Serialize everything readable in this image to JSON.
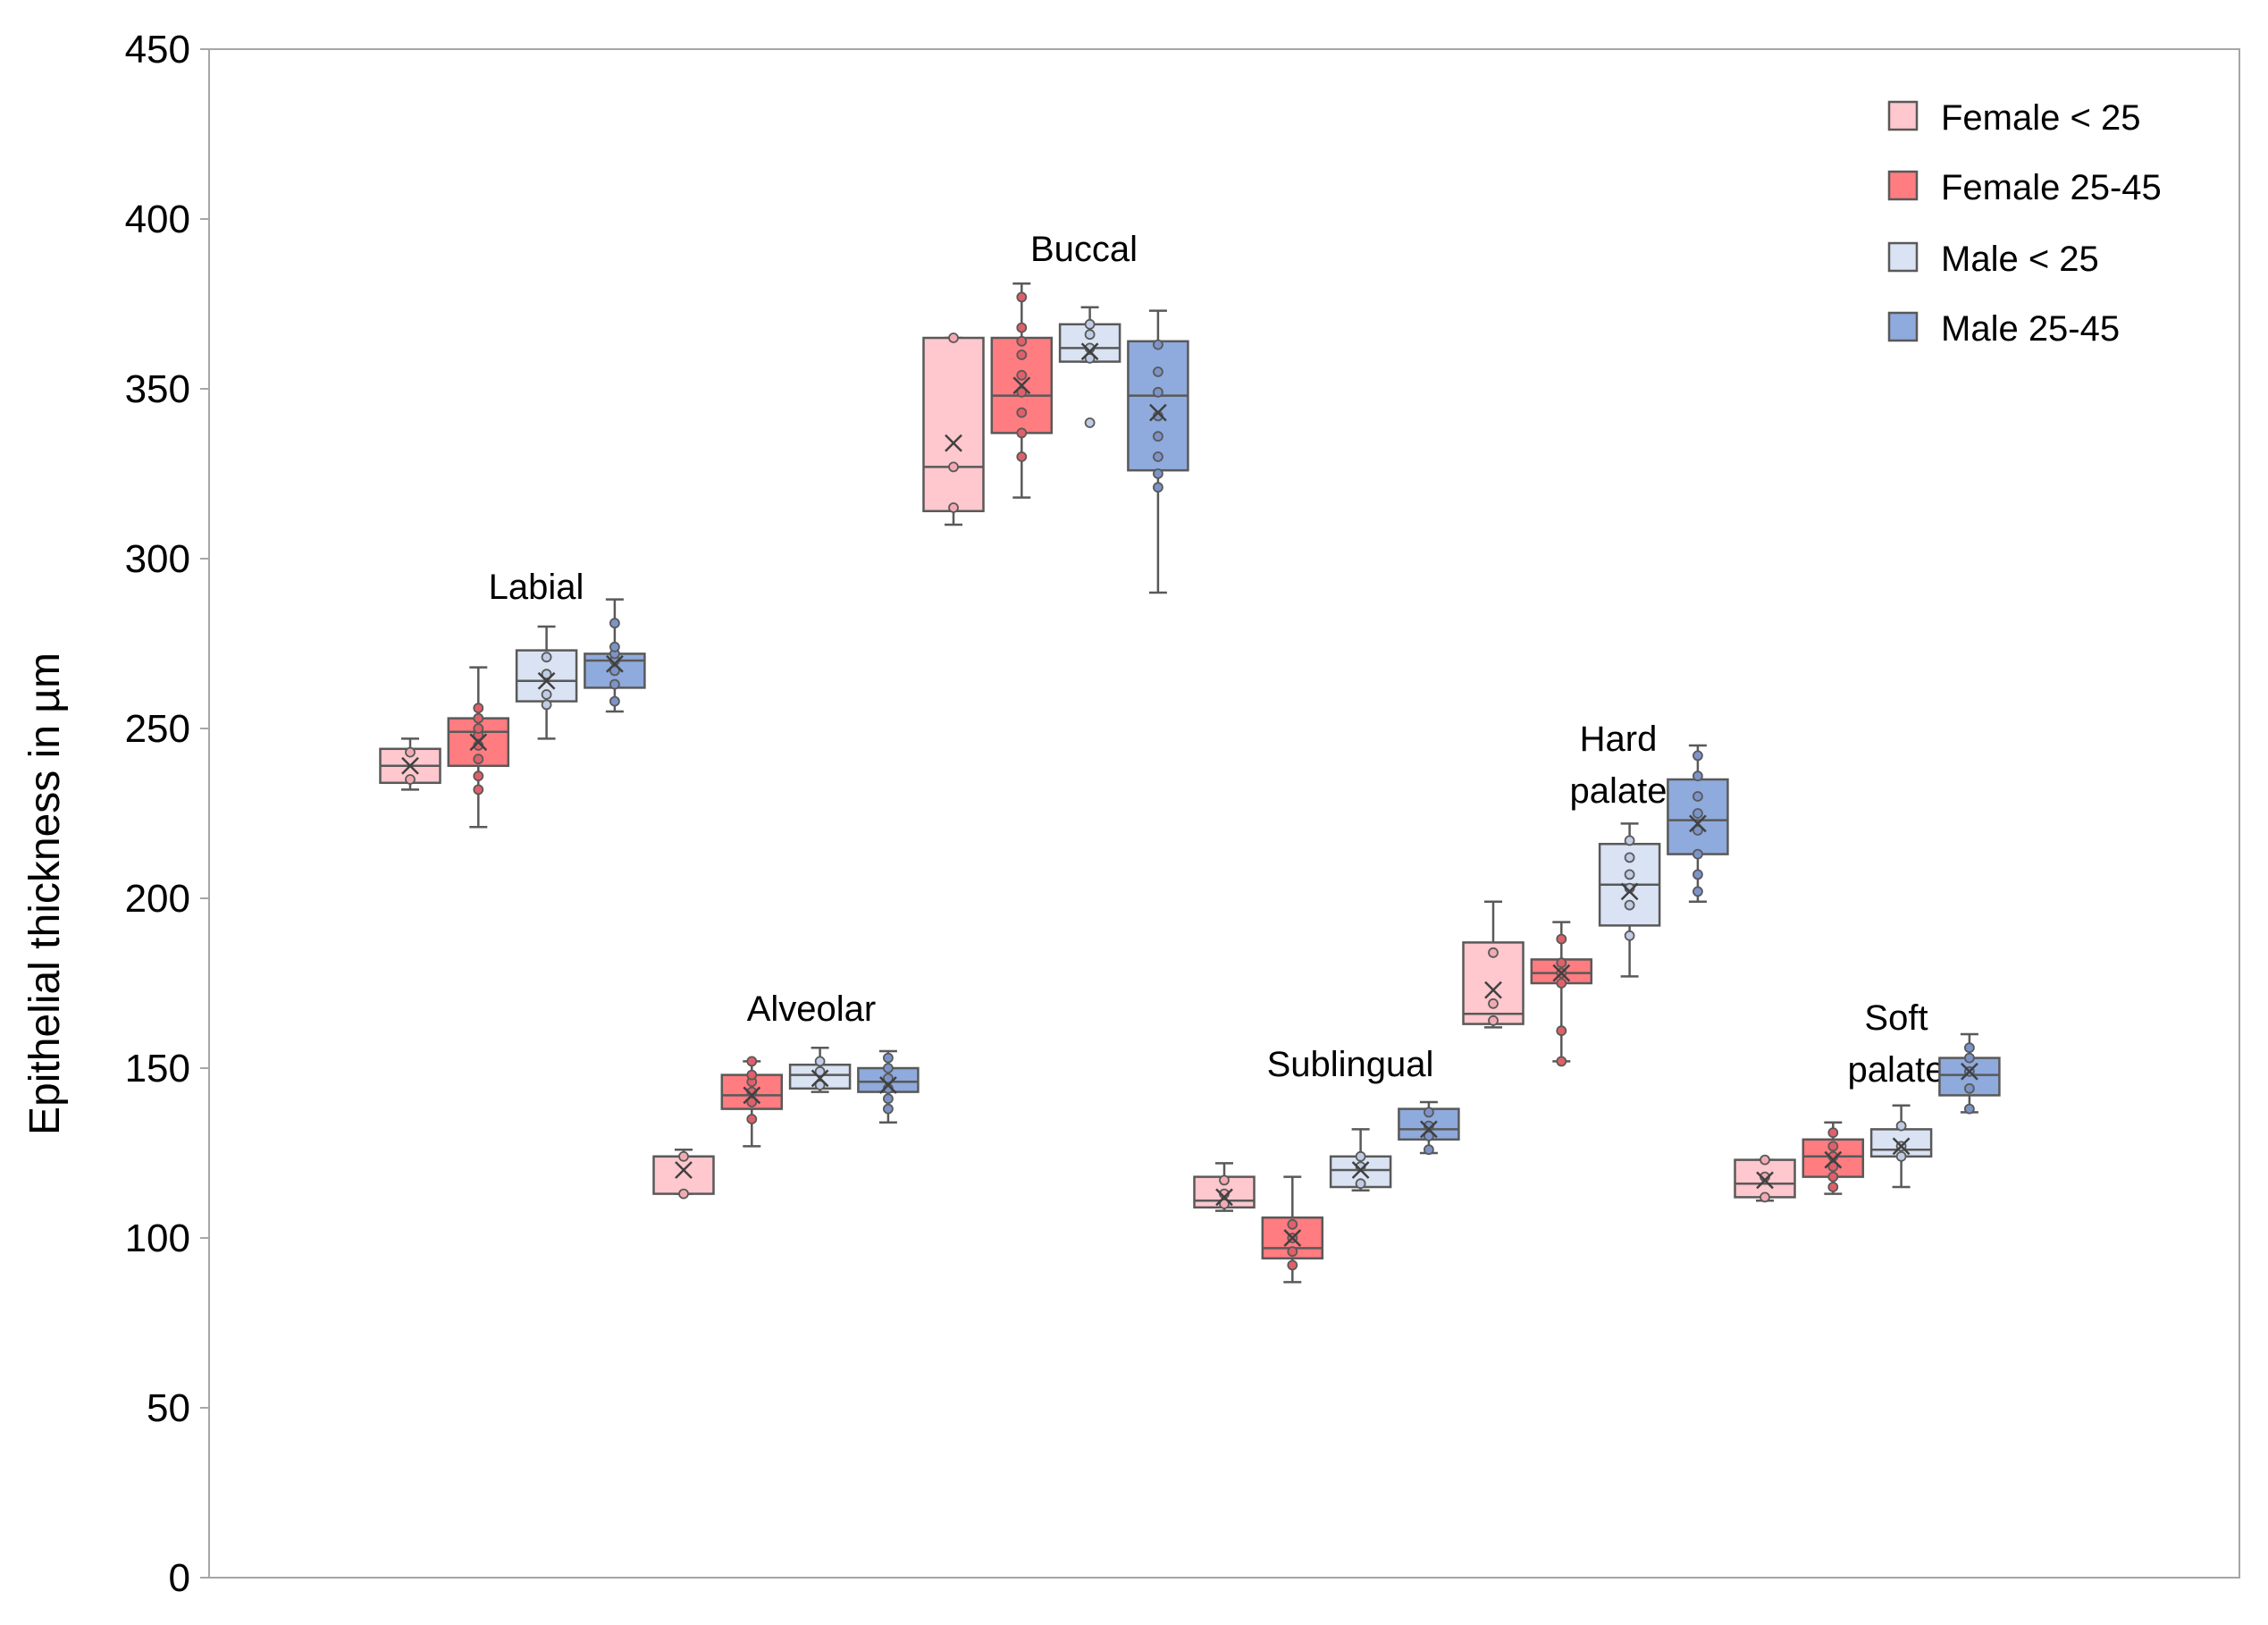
{
  "chart_data": {
    "type": "box",
    "title": "",
    "xlabel": "",
    "ylabel": "Epithelial thickness in µm",
    "ylim": [
      0,
      450
    ],
    "yticks": [
      0,
      50,
      100,
      150,
      200,
      250,
      300,
      350,
      400,
      450
    ],
    "grid": false,
    "legend_position": "top-right",
    "series": [
      {
        "name": "Female < 25",
        "fill": "#FFC7CE",
        "stroke": "#E07882",
        "point": "#F2AAB2"
      },
      {
        "name": "Female 25-45",
        "fill": "#FF7C80",
        "stroke": "#C8505A",
        "point": "#E0606A"
      },
      {
        "name": "Male < 25",
        "fill": "#DAE3F3",
        "stroke": "#7F8BA0",
        "point": "#C0CCE4"
      },
      {
        "name": "Male 25-45",
        "fill": "#8FAADC",
        "stroke": "#5A6E96",
        "point": "#7C94C8"
      }
    ],
    "groups": [
      {
        "label": [
          "Labial"
        ],
        "boxes": [
          {
            "min": 232,
            "q1": 234,
            "median": 239,
            "q3": 244,
            "max": 247,
            "mean": 239,
            "points": [
              235,
              243
            ]
          },
          {
            "min": 221,
            "q1": 239,
            "median": 249,
            "q3": 253,
            "max": 268,
            "mean": 246,
            "points": [
              232,
              236,
              241,
              245,
              248,
              250,
              253,
              256
            ]
          },
          {
            "min": 247,
            "q1": 258,
            "median": 264,
            "q3": 273,
            "max": 280,
            "mean": 264,
            "points": [
              257,
              260,
              266,
              271
            ]
          },
          {
            "min": 255,
            "q1": 262,
            "median": 270,
            "q3": 272,
            "max": 288,
            "mean": 269,
            "points": [
              258,
              263,
              267,
              270,
              272,
              274,
              281
            ]
          }
        ]
      },
      {
        "label": [
          "Alveolar"
        ],
        "boxes": [
          {
            "min": 113,
            "q1": 113,
            "median": 124,
            "q3": 124,
            "max": 126,
            "mean": 120,
            "points": [
              113,
              124
            ]
          },
          {
            "min": 127,
            "q1": 138,
            "median": 142,
            "q3": 148,
            "max": 152,
            "mean": 142,
            "points": [
              135,
              140,
              143,
              146,
              148,
              152
            ]
          },
          {
            "min": 143,
            "q1": 144,
            "median": 148,
            "q3": 151,
            "max": 156,
            "mean": 147,
            "points": [
              145,
              149,
              152
            ]
          },
          {
            "min": 134,
            "q1": 143,
            "median": 146,
            "q3": 150,
            "max": 155,
            "mean": 145,
            "points": [
              138,
              141,
              144,
              147,
              150,
              153
            ]
          }
        ]
      },
      {
        "label": [
          "Buccal"
        ],
        "boxes": [
          {
            "min": 310,
            "q1": 314,
            "median": 327,
            "q3": 365,
            "max": 365,
            "mean": 334,
            "points": [
              315,
              327,
              365
            ]
          },
          {
            "min": 318,
            "q1": 337,
            "median": 348,
            "q3": 365,
            "max": 381,
            "mean": 351,
            "points": [
              330,
              337,
              343,
              349,
              354,
              360,
              364,
              368,
              377
            ]
          },
          {
            "min": 358,
            "q1": 358,
            "median": 362,
            "q3": 369,
            "max": 374,
            "mean": 361,
            "points": [
              340,
              359,
              362,
              366,
              369
            ]
          },
          {
            "min": 290,
            "q1": 326,
            "median": 348,
            "q3": 364,
            "max": 373,
            "mean": 343,
            "points": [
              321,
              325,
              330,
              336,
              342,
              349,
              355,
              363
            ]
          }
        ]
      },
      {
        "label": [
          "Sublingual"
        ],
        "boxes": [
          {
            "min": 108,
            "q1": 109,
            "median": 111,
            "q3": 118,
            "max": 122,
            "mean": 112,
            "points": [
              110,
              113,
              117
            ]
          },
          {
            "min": 87,
            "q1": 94,
            "median": 97,
            "q3": 106,
            "max": 118,
            "mean": 100,
            "points": [
              92,
              96,
              100,
              104
            ]
          },
          {
            "min": 114,
            "q1": 115,
            "median": 120,
            "q3": 124,
            "max": 132,
            "mean": 120,
            "points": [
              116,
              121,
              124
            ]
          },
          {
            "min": 125,
            "q1": 129,
            "median": 132,
            "q3": 138,
            "max": 140,
            "mean": 132,
            "points": [
              126,
              130,
              133,
              137
            ]
          }
        ]
      },
      {
        "label": [
          "Hard",
          "palate"
        ],
        "boxes": [
          {
            "min": 162,
            "q1": 163,
            "median": 166,
            "q3": 187,
            "max": 199,
            "mean": 173,
            "points": [
              164,
              169,
              184
            ]
          },
          {
            "min": 152,
            "q1": 175,
            "median": 178,
            "q3": 182,
            "max": 193,
            "mean": 178,
            "points": [
              152,
              161,
              175,
              178,
              181,
              188
            ]
          },
          {
            "min": 177,
            "q1": 192,
            "median": 204,
            "q3": 216,
            "max": 222,
            "mean": 202,
            "points": [
              189,
              198,
              203,
              207,
              212,
              217
            ]
          },
          {
            "min": 199,
            "q1": 213,
            "median": 223,
            "q3": 235,
            "max": 245,
            "mean": 222,
            "points": [
              202,
              207,
              213,
              220,
              225,
              230,
              236,
              242
            ]
          }
        ]
      },
      {
        "label": [
          "Soft",
          "palate"
        ],
        "boxes": [
          {
            "min": 111,
            "q1": 112,
            "median": 116,
            "q3": 123,
            "max": 123,
            "mean": 117,
            "points": [
              112,
              118,
              123
            ]
          },
          {
            "min": 113,
            "q1": 118,
            "median": 124,
            "q3": 129,
            "max": 134,
            "mean": 123,
            "points": [
              115,
              118,
              121,
              124,
              127,
              131
            ]
          },
          {
            "min": 115,
            "q1": 124,
            "median": 126,
            "q3": 132,
            "max": 139,
            "mean": 127,
            "points": [
              124,
              127,
              133
            ]
          },
          {
            "min": 137,
            "q1": 142,
            "median": 148,
            "q3": 153,
            "max": 160,
            "mean": 149,
            "points": [
              138,
              144,
              149,
              153,
              156
            ]
          }
        ]
      }
    ]
  }
}
